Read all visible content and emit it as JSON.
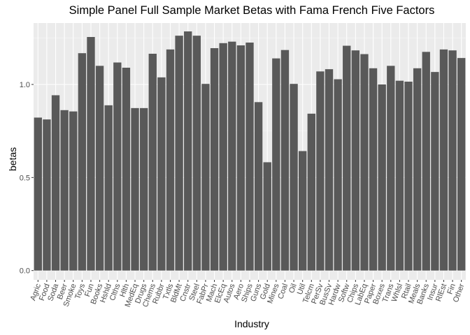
{
  "chart_data": {
    "type": "bar",
    "title": "Simple Panel Full Sample Market Betas with Fama French Five Factors",
    "xlabel": "Industry",
    "ylabel": "betas",
    "ylim": [
      -0.05,
      1.33
    ],
    "yticks": [
      0.0,
      0.5,
      1.0
    ],
    "ytick_labels": [
      "0.0",
      "0.5",
      "1.0"
    ],
    "grid": true,
    "colors": {
      "panel": "#ebebeb",
      "grid_major": "#ffffff",
      "grid_minor": "#f5f5f5",
      "bar": "#595959",
      "tick_text": "#4d4d4d"
    },
    "categories": [
      "Agric",
      "Food",
      "Soda",
      "Beer",
      "Smoke",
      "Toys",
      "Fun",
      "Books",
      "Hshld",
      "Clths",
      "Hlth",
      "MedEq",
      "Drugs",
      "Chems",
      "Rubbr",
      "Txtls",
      "BldMt",
      "Cnstr",
      "Steel",
      "FabPr",
      "Mach",
      "ElcEq",
      "Autos",
      "Aero",
      "Ships",
      "Guns",
      "Gold",
      "Mines",
      "Coal",
      "Oil",
      "Util",
      "Telcm",
      "PerSv",
      "BusSv",
      "Hardw",
      "Softw",
      "Chips",
      "LabEq",
      "Paper",
      "Boxes",
      "Trans",
      "Whlsl",
      "Rtail",
      "Meals",
      "Banks",
      "Insur",
      "RlEst",
      "Fin",
      "Other"
    ],
    "values": [
      0.822,
      0.812,
      0.942,
      0.862,
      0.855,
      1.168,
      1.255,
      1.1,
      0.888,
      1.118,
      1.09,
      0.873,
      0.873,
      1.165,
      1.038,
      1.188,
      1.262,
      1.285,
      1.262,
      1.003,
      1.195,
      1.222,
      1.23,
      1.21,
      1.225,
      0.905,
      0.582,
      1.14,
      1.185,
      1.003,
      0.642,
      0.843,
      1.07,
      1.082,
      1.028,
      1.208,
      1.183,
      1.163,
      1.087,
      1.0,
      1.1,
      1.02,
      1.015,
      1.087,
      1.175,
      1.067,
      1.188,
      1.183,
      1.142
    ]
  }
}
